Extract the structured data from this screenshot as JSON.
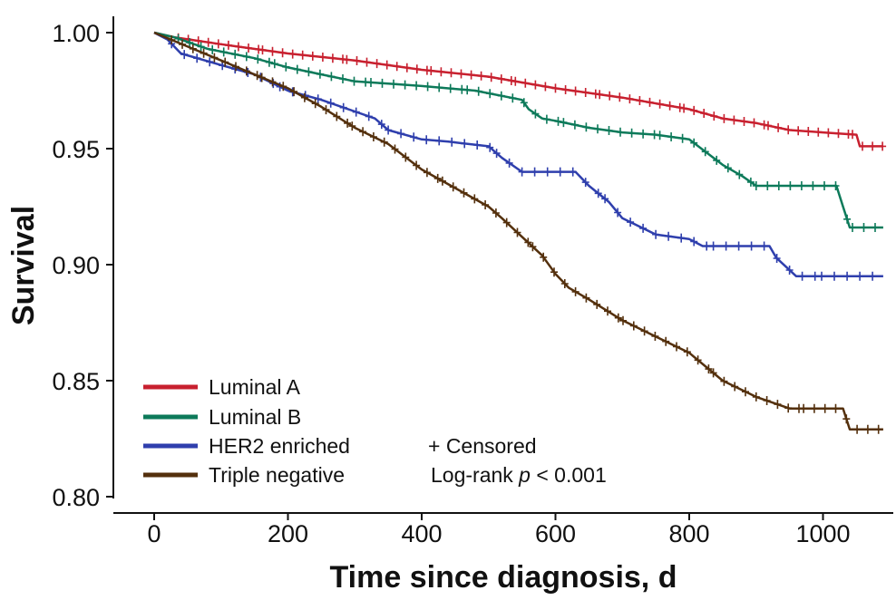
{
  "chart_data": {
    "type": "line",
    "subtype": "kaplan-meier-survival",
    "xlabel": "Time since diagnosis, d",
    "ylabel": "Survival",
    "xlim": [
      -30,
      1100
    ],
    "ylim": [
      0.795,
      1.003
    ],
    "xticks": [
      0,
      200,
      400,
      600,
      800,
      1000
    ],
    "xtick_labels": [
      "0",
      "200",
      "400",
      "600",
      "800",
      "1000"
    ],
    "yticks": [
      0.8,
      0.85,
      0.9,
      0.95,
      1.0
    ],
    "ytick_labels": [
      "0.80",
      "0.85",
      "0.90",
      "0.95",
      "1.00"
    ],
    "legend_position": "bottom-left",
    "censored_marker_label": "+ Censored",
    "annotation_prefix": "Log-rank ",
    "annotation_p": "p",
    "annotation_suffix": " < 0.001",
    "series": [
      {
        "name": "Luminal A",
        "color": "#c8202f",
        "points": [
          [
            0,
            1.0
          ],
          [
            30,
            0.998
          ],
          [
            100,
            0.995
          ],
          [
            200,
            0.991
          ],
          [
            300,
            0.988
          ],
          [
            400,
            0.984
          ],
          [
            500,
            0.981
          ],
          [
            600,
            0.976
          ],
          [
            700,
            0.972
          ],
          [
            800,
            0.967
          ],
          [
            850,
            0.963
          ],
          [
            900,
            0.961
          ],
          [
            950,
            0.958
          ],
          [
            1000,
            0.957
          ],
          [
            1050,
            0.956
          ],
          [
            1055,
            0.951
          ],
          [
            1090,
            0.951
          ]
        ],
        "censored_from": 40,
        "censored_step": 14
      },
      {
        "name": "Luminal B",
        "color": "#0d7a5a",
        "points": [
          [
            0,
            1.0
          ],
          [
            30,
            0.998
          ],
          [
            80,
            0.993
          ],
          [
            150,
            0.989
          ],
          [
            200,
            0.985
          ],
          [
            250,
            0.982
          ],
          [
            300,
            0.979
          ],
          [
            350,
            0.978
          ],
          [
            400,
            0.977
          ],
          [
            480,
            0.975
          ],
          [
            550,
            0.971
          ],
          [
            560,
            0.967
          ],
          [
            580,
            0.963
          ],
          [
            600,
            0.962
          ],
          [
            650,
            0.959
          ],
          [
            700,
            0.957
          ],
          [
            750,
            0.956
          ],
          [
            800,
            0.954
          ],
          [
            850,
            0.943
          ],
          [
            880,
            0.938
          ],
          [
            900,
            0.934
          ],
          [
            1020,
            0.934
          ],
          [
            1030,
            0.925
          ],
          [
            1040,
            0.916
          ],
          [
            1090,
            0.916
          ]
        ],
        "censored_from": 40,
        "censored_step": 16
      },
      {
        "name": "HER2 enriched",
        "color": "#2f3fad",
        "points": [
          [
            0,
            1.0
          ],
          [
            20,
            0.997
          ],
          [
            40,
            0.991
          ],
          [
            100,
            0.986
          ],
          [
            150,
            0.982
          ],
          [
            200,
            0.975
          ],
          [
            250,
            0.971
          ],
          [
            300,
            0.966
          ],
          [
            330,
            0.963
          ],
          [
            350,
            0.958
          ],
          [
            400,
            0.954
          ],
          [
            440,
            0.953
          ],
          [
            500,
            0.951
          ],
          [
            520,
            0.946
          ],
          [
            550,
            0.94
          ],
          [
            630,
            0.94
          ],
          [
            650,
            0.934
          ],
          [
            680,
            0.927
          ],
          [
            700,
            0.92
          ],
          [
            750,
            0.913
          ],
          [
            800,
            0.911
          ],
          [
            820,
            0.908
          ],
          [
            920,
            0.908
          ],
          [
            930,
            0.903
          ],
          [
            960,
            0.895
          ],
          [
            1090,
            0.895
          ]
        ],
        "censored_from": 30,
        "censored_step": 18
      },
      {
        "name": "Triple negative",
        "color": "#54300d",
        "points": [
          [
            0,
            1.0
          ],
          [
            50,
            0.994
          ],
          [
            100,
            0.988
          ],
          [
            150,
            0.982
          ],
          [
            200,
            0.976
          ],
          [
            250,
            0.968
          ],
          [
            300,
            0.959
          ],
          [
            350,
            0.952
          ],
          [
            400,
            0.941
          ],
          [
            450,
            0.933
          ],
          [
            500,
            0.925
          ],
          [
            520,
            0.92
          ],
          [
            550,
            0.912
          ],
          [
            580,
            0.904
          ],
          [
            600,
            0.896
          ],
          [
            620,
            0.89
          ],
          [
            650,
            0.885
          ],
          [
            700,
            0.876
          ],
          [
            750,
            0.869
          ],
          [
            800,
            0.862
          ],
          [
            850,
            0.85
          ],
          [
            900,
            0.843
          ],
          [
            950,
            0.838
          ],
          [
            1030,
            0.838
          ],
          [
            1040,
            0.829
          ],
          [
            1090,
            0.829
          ]
        ],
        "censored_from": 30,
        "censored_step": 15
      }
    ]
  }
}
